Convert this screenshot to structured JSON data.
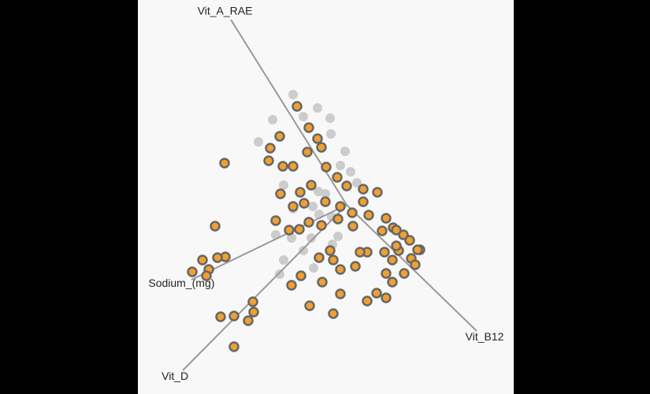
{
  "chart_data": {
    "type": "scatter",
    "xlim": [
      -265,
      212
    ],
    "ylim": [
      -240,
      260
    ],
    "axis_color": "#999999",
    "series": [
      {
        "color": "#cccccc",
        "x": [
          -68,
          -37,
          -55,
          -21,
          -94,
          -112,
          -20,
          -2,
          -8,
          5,
          -80,
          -68,
          -43,
          -35,
          -19,
          -90,
          -70,
          -45,
          -11,
          -80,
          -85,
          -42,
          -18,
          -55,
          -36,
          -27,
          13
        ],
        "y": [
          140,
          123,
          112,
          110,
          108,
          80,
          90,
          68,
          50,
          42,
          25,
          -5,
          -2,
          -12,
          -15,
          -38,
          -42,
          -42,
          -40,
          -70,
          -88,
          -80,
          -50,
          -58,
          17,
          14,
          28
        ]
      },
      {
        "color": "#f0a030",
        "edge_color": "#666666",
        "x": [
          -63,
          -48,
          -37,
          -32,
          -85,
          -97,
          -99,
          -81,
          -68,
          -50,
          -26,
          -155,
          -12,
          0,
          21,
          39,
          -45,
          -59,
          -84,
          -54,
          -27,
          -8,
          21,
          7,
          28,
          50,
          59,
          72,
          80,
          93,
          66,
          82,
          87,
          58,
          73,
          50,
          26,
          17,
          8,
          -11,
          -32,
          -48,
          -60,
          -73,
          -90,
          -68,
          -167,
          -154,
          -164,
          -183,
          -175,
          -196,
          -178,
          -143,
          -160,
          -143,
          -125,
          -119,
          -118,
          -47,
          -8,
          -17,
          -70,
          -58,
          -31,
          -8,
          11,
          -21,
          -35,
          -17,
          26,
          38,
          50,
          58,
          48,
          63,
          45,
          63,
          90
        ],
        "y": [
          125,
          98,
          84,
          73,
          87,
          72,
          56,
          49,
          49,
          67,
          48,
          53,
          35,
          24,
          20,
          16,
          25,
          16,
          14,
          2,
          4,
          -2,
          4,
          -10,
          -13,
          -17,
          -29,
          -38,
          -45,
          -57,
          -58,
          -68,
          -76,
          -70,
          -87,
          -87,
          -60,
          -60,
          -27,
          -18,
          -26,
          -22,
          -31,
          -32,
          -20,
          -2,
          -27,
          -66,
          -67,
          -70,
          -82,
          -85,
          -90,
          -180,
          -142,
          -141,
          -147,
          -123,
          -136,
          -128,
          -113,
          -138,
          -102,
          -90,
          -98,
          -82,
          -78,
          -58,
          -67,
          -70,
          -122,
          -112,
          -118,
          -98,
          -60,
          -52,
          -33,
          -32,
          -57
        ]
      }
    ],
    "axes": [
      {
        "label": "Vit_A_RAE",
        "x": -147,
        "y": 235
      },
      {
        "label": "Vit_B12",
        "x": 165,
        "y": -160
      },
      {
        "label": "Sodium_(mg)",
        "x": -197,
        "y": -95
      },
      {
        "label": "Vit_D",
        "x": -208,
        "y": -210
      }
    ]
  }
}
